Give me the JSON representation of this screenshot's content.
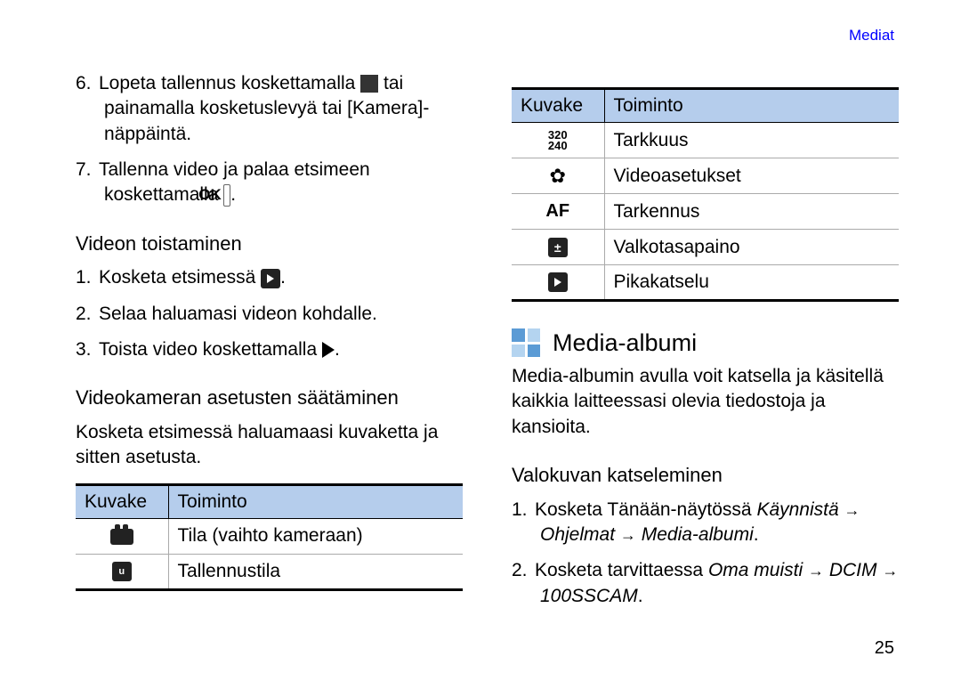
{
  "header_link": "Mediat",
  "page_number": "25",
  "colors": {
    "table_header_bg": "#b5cdec",
    "link": "#0000ff"
  },
  "left": {
    "steps_top": [
      {
        "n": "6.",
        "pre": "Lopeta tallennus koskettamalla ",
        "icon": "stop",
        "post": " tai painamalla kosketuslevyä tai [Kamera]-näppäintä."
      },
      {
        "n": "7.",
        "pre": "Tallenna video ja palaa etsimeen koskettamalla ",
        "icon": "ok",
        "post": "."
      }
    ],
    "sub1": "Videon toistaminen",
    "steps_play": [
      {
        "n": "1.",
        "pre": "Kosketa etsimessä ",
        "icon": "play-dark",
        "post": "."
      },
      {
        "n": "2.",
        "pre": "Selaa haluamasi videon kohdalle.",
        "icon": null,
        "post": ""
      },
      {
        "n": "3.",
        "pre": "Toista video koskettamalla ",
        "icon": "play-tri",
        "post": "."
      }
    ],
    "sub2": "Videokameran asetusten säätäminen",
    "body2": "Kosketa etsimessä haluamaasi kuvaketta ja sitten asetusta.",
    "table_h1": "Kuvake",
    "table_h2": "Toiminto",
    "table_rows": [
      {
        "icon": "cam",
        "label": "Tila (vaihto kameraan)"
      },
      {
        "icon": "store",
        "label": "Tallennustila"
      }
    ]
  },
  "right": {
    "table_h1": "Kuvake",
    "table_h2": "Toiminto",
    "table_rows": [
      {
        "icon": "res",
        "label": "Tarkkuus"
      },
      {
        "icon": "gear",
        "label": "Videoasetukset"
      },
      {
        "icon": "af",
        "label": "Tarkennus"
      },
      {
        "icon": "exp",
        "label": "Valkotasapaino"
      },
      {
        "icon": "play-dark",
        "label": "Pikakatselu"
      }
    ],
    "section_title": "Media-albumi",
    "section_body": "Media-albumin avulla voit katsella ja käsitellä kaikkia laitteessasi olevia tiedostoja ja kansioita.",
    "sub3": "Valokuvan katseleminen",
    "steps_view": [
      {
        "n": "1.",
        "parts": [
          "Kosketa Tänään-näytössä ",
          {
            "i": "Käynnistä"
          },
          " → ",
          {
            "i": "Ohjelmat"
          },
          " → ",
          {
            "i": "Media-albumi"
          },
          "."
        ]
      },
      {
        "n": "2.",
        "parts": [
          "Kosketa tarvittaessa ",
          {
            "i": "Oma muisti"
          },
          " → ",
          {
            "i": "DCIM"
          },
          " → ",
          {
            "i": "100SSCAM"
          },
          "."
        ]
      }
    ]
  }
}
